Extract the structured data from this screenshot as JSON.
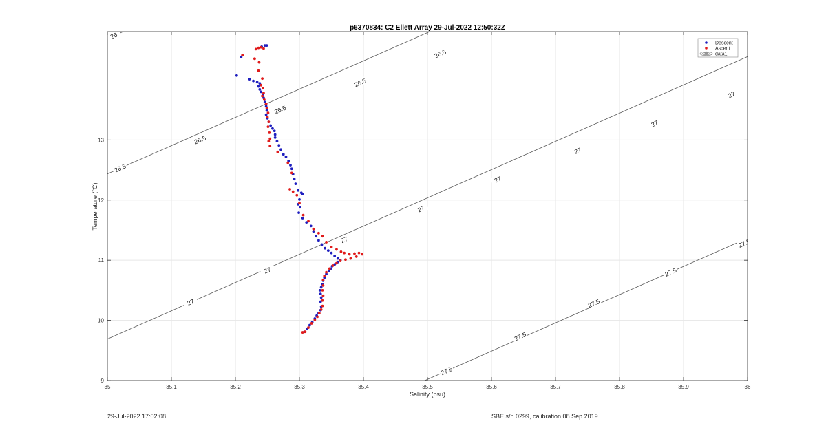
{
  "chart_data": {
    "type": "scatter",
    "title": "p6370834: C2 Ellett Array 29-Jul-2022 12:50:32Z",
    "xlabel": "Salinity (psu)",
    "ylabel": "Temperature (°C)",
    "xlim": [
      35,
      36
    ],
    "ylim": [
      9,
      14.8
    ],
    "xticks": [
      "35",
      "35.1",
      "35.2",
      "35.3",
      "35.4",
      "35.5",
      "35.6",
      "35.7",
      "35.8",
      "35.9",
      "36"
    ],
    "yticks": [
      "9",
      "10",
      "11",
      "12",
      "13"
    ],
    "grid": true,
    "legend": {
      "placement": "top-right",
      "entries": [
        {
          "label": "Descent",
          "color": "#1f1fbf",
          "marker": "dot"
        },
        {
          "label": "Ascent",
          "color": "#e01b1b",
          "marker": "dot"
        },
        {
          "label": "data1",
          "color": "#555555",
          "marker": "contour"
        }
      ]
    },
    "contours": [
      {
        "level": "26",
        "labels": [
          {
            "s": 35.01,
            "t": 14.73
          }
        ]
      },
      {
        "level": "26.5",
        "labels": [
          {
            "s": 35.02,
            "t": 12.53
          },
          {
            "s": 35.145,
            "t": 13.0
          },
          {
            "s": 35.27,
            "t": 13.5
          },
          {
            "s": 35.395,
            "t": 13.95
          },
          {
            "s": 35.52,
            "t": 14.43
          },
          {
            "s": 35.645,
            "t": 14.86
          }
        ]
      },
      {
        "level": "27",
        "labels": [
          {
            "s": 35.13,
            "t": 10.3
          },
          {
            "s": 35.25,
            "t": 10.83
          },
          {
            "s": 35.37,
            "t": 11.34
          },
          {
            "s": 35.49,
            "t": 11.85
          },
          {
            "s": 35.61,
            "t": 12.34
          },
          {
            "s": 35.735,
            "t": 12.82
          },
          {
            "s": 35.855,
            "t": 13.27
          },
          {
            "s": 35.975,
            "t": 13.75
          }
        ]
      },
      {
        "level": "27.5",
        "labels": [
          {
            "s": 35.53,
            "t": 9.16
          },
          {
            "s": 35.645,
            "t": 9.73
          },
          {
            "s": 35.76,
            "t": 10.28
          },
          {
            "s": 35.88,
            "t": 10.8
          },
          {
            "s": 35.995,
            "t": 11.28
          }
        ]
      }
    ],
    "series": [
      {
        "name": "Descent",
        "color": "#1f1fbf",
        "points": [
          [
            35.249,
            14.57
          ],
          [
            35.246,
            14.57
          ],
          [
            35.241,
            14.55
          ],
          [
            35.209,
            14.38
          ],
          [
            35.202,
            14.07
          ],
          [
            35.222,
            14.01
          ],
          [
            35.228,
            13.98
          ],
          [
            35.234,
            13.96
          ],
          [
            35.238,
            13.94
          ],
          [
            35.236,
            13.89
          ],
          [
            35.238,
            13.84
          ],
          [
            35.24,
            13.8
          ],
          [
            35.243,
            13.75
          ],
          [
            35.244,
            13.7
          ],
          [
            35.246,
            13.63
          ],
          [
            35.248,
            13.56
          ],
          [
            35.249,
            13.49
          ],
          [
            35.248,
            13.42
          ],
          [
            35.25,
            13.36
          ],
          [
            35.252,
            13.3
          ],
          [
            35.255,
            13.24
          ],
          [
            35.258,
            13.19
          ],
          [
            35.261,
            13.15
          ],
          [
            35.262,
            13.09
          ],
          [
            35.262,
            13.04
          ],
          [
            35.265,
            12.98
          ],
          [
            35.268,
            12.91
          ],
          [
            35.271,
            12.84
          ],
          [
            35.275,
            12.76
          ],
          [
            35.279,
            12.72
          ],
          [
            35.283,
            12.65
          ],
          [
            35.286,
            12.58
          ],
          [
            35.288,
            12.52
          ],
          [
            35.29,
            12.43
          ],
          [
            35.292,
            12.35
          ],
          [
            35.294,
            12.27
          ],
          [
            35.298,
            12.16
          ],
          [
            35.303,
            12.12
          ],
          [
            35.305,
            12.1
          ],
          [
            35.3,
            12.01
          ],
          [
            35.298,
            11.93
          ],
          [
            35.301,
            11.88
          ],
          [
            35.299,
            11.79
          ],
          [
            35.305,
            11.7
          ],
          [
            35.311,
            11.63
          ],
          [
            35.318,
            11.57
          ],
          [
            35.322,
            11.48
          ],
          [
            35.326,
            11.4
          ],
          [
            35.33,
            11.33
          ],
          [
            35.335,
            11.26
          ],
          [
            35.34,
            11.2
          ],
          [
            35.345,
            11.16
          ],
          [
            35.35,
            11.12
          ],
          [
            35.355,
            11.07
          ],
          [
            35.36,
            11.03
          ],
          [
            35.364,
            11.0
          ],
          [
            35.36,
            10.97
          ],
          [
            35.355,
            10.93
          ],
          [
            35.351,
            10.9
          ],
          [
            35.349,
            10.86
          ],
          [
            35.346,
            10.82
          ],
          [
            35.342,
            10.77
          ],
          [
            35.339,
            10.71
          ],
          [
            35.337,
            10.66
          ],
          [
            35.336,
            10.6
          ],
          [
            35.334,
            10.55
          ],
          [
            35.332,
            10.5
          ],
          [
            35.333,
            10.44
          ],
          [
            35.334,
            10.38
          ],
          [
            35.333,
            10.31
          ],
          [
            35.334,
            10.23
          ],
          [
            35.333,
            10.17
          ],
          [
            35.33,
            10.12
          ],
          [
            35.327,
            10.08
          ],
          [
            35.324,
            10.03
          ],
          [
            35.32,
            9.97
          ],
          [
            35.316,
            9.92
          ],
          [
            35.312,
            9.86
          ],
          [
            35.308,
            9.81
          ]
        ]
      },
      {
        "name": "Ascent",
        "color": "#e01b1b",
        "points": [
          [
            35.244,
            14.52
          ],
          [
            35.24,
            14.54
          ],
          [
            35.236,
            14.53
          ],
          [
            35.232,
            14.51
          ],
          [
            35.211,
            14.41
          ],
          [
            35.23,
            14.35
          ],
          [
            35.237,
            14.29
          ],
          [
            35.236,
            14.15
          ],
          [
            35.242,
            14.02
          ],
          [
            35.24,
            13.91
          ],
          [
            35.243,
            13.86
          ],
          [
            35.244,
            13.78
          ],
          [
            35.242,
            13.73
          ],
          [
            35.245,
            13.67
          ],
          [
            35.248,
            13.6
          ],
          [
            35.249,
            13.53
          ],
          [
            35.251,
            13.45
          ],
          [
            35.25,
            13.38
          ],
          [
            35.252,
            13.3
          ],
          [
            35.251,
            13.22
          ],
          [
            35.253,
            13.12
          ],
          [
            35.254,
            13.02
          ],
          [
            35.252,
            12.98
          ],
          [
            35.254,
            12.9
          ],
          [
            35.266,
            12.8
          ],
          [
            35.282,
            12.62
          ],
          [
            35.288,
            12.45
          ],
          [
            35.285,
            12.18
          ],
          [
            35.29,
            12.14
          ],
          [
            35.296,
            12.08
          ],
          [
            35.3,
            11.95
          ],
          [
            35.306,
            11.75
          ],
          [
            35.314,
            11.65
          ],
          [
            35.322,
            11.52
          ],
          [
            35.33,
            11.45
          ],
          [
            35.336,
            11.4
          ],
          [
            35.342,
            11.3
          ],
          [
            35.35,
            11.22
          ],
          [
            35.358,
            11.18
          ],
          [
            35.365,
            11.14
          ],
          [
            35.37,
            11.12
          ],
          [
            35.378,
            11.1
          ],
          [
            35.386,
            11.11
          ],
          [
            35.393,
            11.12
          ],
          [
            35.398,
            11.1
          ],
          [
            35.389,
            11.06
          ],
          [
            35.38,
            11.03
          ],
          [
            35.372,
            11.01
          ],
          [
            35.364,
            10.99
          ],
          [
            35.358,
            10.95
          ],
          [
            35.352,
            10.91
          ],
          [
            35.347,
            10.86
          ],
          [
            35.342,
            10.8
          ],
          [
            35.339,
            10.74
          ],
          [
            35.337,
            10.67
          ],
          [
            35.337,
            10.58
          ],
          [
            35.336,
            10.5
          ],
          [
            35.337,
            10.41
          ],
          [
            35.336,
            10.33
          ],
          [
            35.336,
            10.24
          ],
          [
            35.334,
            10.18
          ],
          [
            35.331,
            10.12
          ],
          [
            35.328,
            10.06
          ],
          [
            35.324,
            10.01
          ],
          [
            35.319,
            9.95
          ],
          [
            35.314,
            9.88
          ],
          [
            35.309,
            9.81
          ],
          [
            35.305,
            9.8
          ]
        ]
      }
    ]
  },
  "footer": {
    "left": "29-Jul-2022 17:02:08",
    "right": "SBE s/n 0299, calibration 08 Sep 2019"
  }
}
